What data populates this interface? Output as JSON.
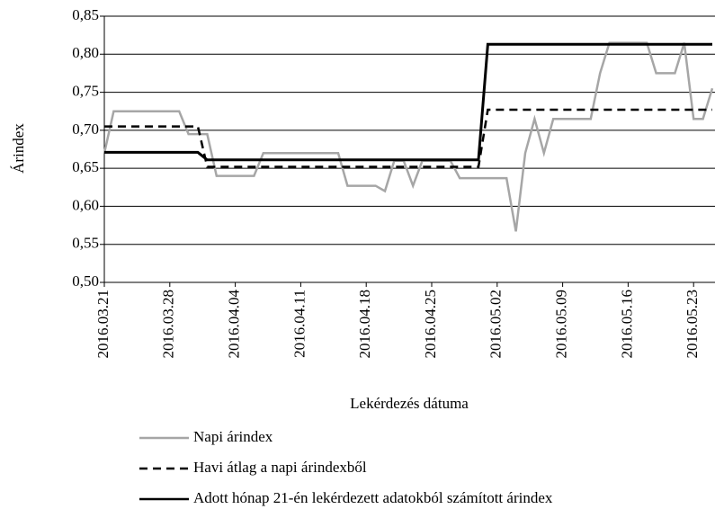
{
  "chart_data": {
    "type": "line",
    "x_label": "Lekérdezés dátuma",
    "y_label": "Árindex",
    "x": [
      "2016.03.21",
      "2016.03.22",
      "2016.03.23",
      "2016.03.24",
      "2016.03.25",
      "2016.03.26",
      "2016.03.27",
      "2016.03.28",
      "2016.03.29",
      "2016.03.30",
      "2016.03.31",
      "2016.04.01",
      "2016.04.02",
      "2016.04.03",
      "2016.04.04",
      "2016.04.05",
      "2016.04.06",
      "2016.04.07",
      "2016.04.08",
      "2016.04.09",
      "2016.04.10",
      "2016.04.11",
      "2016.04.12",
      "2016.04.13",
      "2016.04.14",
      "2016.04.15",
      "2016.04.16",
      "2016.04.17",
      "2016.04.18",
      "2016.04.19",
      "2016.04.20",
      "2016.04.21",
      "2016.04.22",
      "2016.04.23",
      "2016.04.24",
      "2016.04.25",
      "2016.04.26",
      "2016.04.27",
      "2016.04.28",
      "2016.04.29",
      "2016.04.30",
      "2016.05.01",
      "2016.05.02",
      "2016.05.03",
      "2016.05.04",
      "2016.05.05",
      "2016.05.06",
      "2016.05.07",
      "2016.05.08",
      "2016.05.09",
      "2016.05.10",
      "2016.05.11",
      "2016.05.12",
      "2016.05.13",
      "2016.05.14",
      "2016.05.15",
      "2016.05.16",
      "2016.05.17",
      "2016.05.18",
      "2016.05.19",
      "2016.05.20",
      "2016.05.21",
      "2016.05.22",
      "2016.05.23",
      "2016.05.24",
      "2016.05.25"
    ],
    "series": [
      {
        "name": "Napi árindex",
        "color": "#a6a6a6",
        "dash": "solid",
        "values": [
          0.67,
          0.725,
          0.725,
          0.725,
          0.725,
          0.725,
          0.725,
          0.725,
          0.725,
          0.695,
          0.695,
          0.695,
          0.64,
          0.64,
          0.64,
          0.64,
          0.64,
          0.67,
          0.67,
          0.67,
          0.67,
          0.67,
          0.67,
          0.67,
          0.67,
          0.67,
          0.627,
          0.627,
          0.627,
          0.627,
          0.62,
          0.66,
          0.66,
          0.627,
          0.66,
          0.66,
          0.66,
          0.66,
          0.637,
          0.637,
          0.637,
          0.637,
          0.637,
          0.637,
          0.567,
          0.67,
          0.715,
          0.67,
          0.715,
          0.715,
          0.715,
          0.715,
          0.715,
          0.775,
          0.815,
          0.815,
          0.815,
          0.815,
          0.815,
          0.775,
          0.775,
          0.775,
          0.815,
          0.715,
          0.715,
          0.755
        ]
      },
      {
        "name": "Havi átlag a napi árindexből",
        "color": "#000000",
        "dash": "dashed",
        "values": [
          0.705,
          0.705,
          0.705,
          0.705,
          0.705,
          0.705,
          0.705,
          0.705,
          0.705,
          0.705,
          0.705,
          0.652,
          0.652,
          0.652,
          0.652,
          0.652,
          0.652,
          0.652,
          0.652,
          0.652,
          0.652,
          0.652,
          0.652,
          0.652,
          0.652,
          0.652,
          0.652,
          0.652,
          0.652,
          0.652,
          0.652,
          0.652,
          0.652,
          0.652,
          0.652,
          0.652,
          0.652,
          0.652,
          0.652,
          0.652,
          0.652,
          0.727,
          0.727,
          0.727,
          0.727,
          0.727,
          0.727,
          0.727,
          0.727,
          0.727,
          0.727,
          0.727,
          0.727,
          0.727,
          0.727,
          0.727,
          0.727,
          0.727,
          0.727,
          0.727,
          0.727,
          0.727,
          0.727,
          0.727,
          0.727,
          0.727
        ]
      },
      {
        "name": "Adott hónap 21-én lekérdezett adatokból számított árindex",
        "color": "#000000",
        "dash": "solid",
        "values": [
          0.671,
          0.671,
          0.671,
          0.671,
          0.671,
          0.671,
          0.671,
          0.671,
          0.671,
          0.671,
          0.671,
          0.661,
          0.661,
          0.661,
          0.661,
          0.661,
          0.661,
          0.661,
          0.661,
          0.661,
          0.661,
          0.661,
          0.661,
          0.661,
          0.661,
          0.661,
          0.661,
          0.661,
          0.661,
          0.661,
          0.661,
          0.661,
          0.661,
          0.661,
          0.661,
          0.661,
          0.661,
          0.661,
          0.661,
          0.661,
          0.661,
          0.813,
          0.813,
          0.813,
          0.813,
          0.813,
          0.813,
          0.813,
          0.813,
          0.813,
          0.813,
          0.813,
          0.813,
          0.813,
          0.813,
          0.813,
          0.813,
          0.813,
          0.813,
          0.813,
          0.813,
          0.813,
          0.813,
          0.813,
          0.813,
          0.813
        ]
      }
    ],
    "xlim": [
      "2016.03.21",
      "2016.05.25"
    ],
    "xticks": [
      "2016.03.21",
      "2016.03.28",
      "2016.04.04",
      "2016.04.11",
      "2016.04.18",
      "2016.04.25",
      "2016.05.02",
      "2016.05.09",
      "2016.05.16",
      "2016.05.23"
    ],
    "ylim": [
      0.5,
      0.85
    ],
    "yticks": [
      {
        "value": 0.5,
        "label": "0,50"
      },
      {
        "value": 0.55,
        "label": "0,55"
      },
      {
        "value": 0.6,
        "label": "0,60"
      },
      {
        "value": 0.65,
        "label": "0,65"
      },
      {
        "value": 0.7,
        "label": "0,70"
      },
      {
        "value": 0.75,
        "label": "0,75"
      },
      {
        "value": 0.8,
        "label": "0,80"
      },
      {
        "value": 0.85,
        "label": "0,85"
      }
    ],
    "grid": true
  }
}
